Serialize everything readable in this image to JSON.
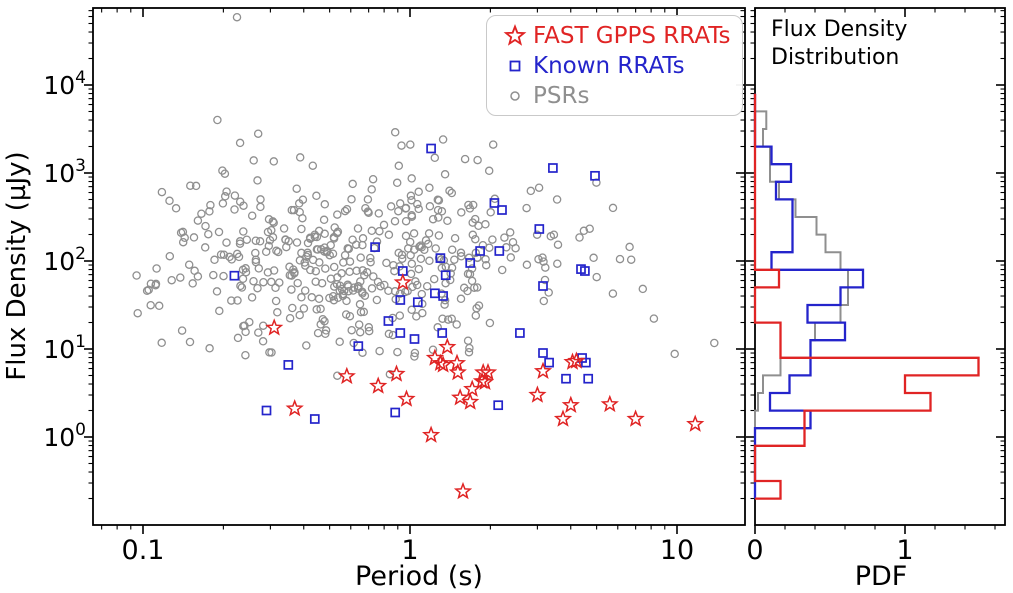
{
  "figure": {
    "background": "#ffffff",
    "text_color": "#000000",
    "spine_color": "#000000"
  },
  "chart_data": [
    {
      "id": "scatter-panel",
      "type": "scatter",
      "xlabel": "Period (s)",
      "ylabel": "Flux Density (µJy)",
      "xscale": "log",
      "yscale": "log",
      "xlim": [
        0.065,
        18
      ],
      "ylim": [
        0.1,
        75000
      ],
      "grid": false,
      "legend_position": "upper right",
      "x_ticks": [
        {
          "value": 0.1,
          "label": "0.1"
        },
        {
          "value": 1,
          "label": "1"
        },
        {
          "value": 10,
          "label": "10"
        }
      ],
      "y_ticks": [
        {
          "value": 1,
          "base": "10",
          "exponent": "0"
        },
        {
          "value": 10,
          "base": "10",
          "exponent": "1"
        },
        {
          "value": 100,
          "base": "10",
          "exponent": "2"
        },
        {
          "value": 1000,
          "base": "10",
          "exponent": "3"
        },
        {
          "value": 10000,
          "base": "10",
          "exponent": "4"
        }
      ],
      "series": [
        {
          "name": "FAST GPPS RRATs",
          "marker": "star",
          "color": "#e02424",
          "points": [
            [
              0.31,
              17.4
            ],
            [
              0.37,
              2.1
            ],
            [
              0.58,
              4.9
            ],
            [
              0.76,
              3.8
            ],
            [
              0.89,
              5.2
            ],
            [
              0.94,
              57
            ],
            [
              0.97,
              2.7
            ],
            [
              1.2,
              1.05
            ],
            [
              1.24,
              7.9
            ],
            [
              1.3,
              6.9
            ],
            [
              1.33,
              6.6
            ],
            [
              1.38,
              10.5
            ],
            [
              1.5,
              6.9
            ],
            [
              1.51,
              5.4
            ],
            [
              1.54,
              2.8
            ],
            [
              1.58,
              0.24
            ],
            [
              1.68,
              2.5
            ],
            [
              1.71,
              3.5
            ],
            [
              1.86,
              4.3
            ],
            [
              1.88,
              5.4
            ],
            [
              1.91,
              4.2
            ],
            [
              1.96,
              5.4
            ],
            [
              3.0,
              3.0
            ],
            [
              3.15,
              5.6
            ],
            [
              3.74,
              1.6
            ],
            [
              4.0,
              2.3
            ],
            [
              4.06,
              7.1
            ],
            [
              4.2,
              7.3
            ],
            [
              5.6,
              2.35
            ],
            [
              7.0,
              1.6
            ],
            [
              11.7,
              1.4
            ]
          ]
        },
        {
          "name": "Known RRATs",
          "marker": "square",
          "color": "#2424cb",
          "points": [
            [
              0.22,
              68
            ],
            [
              0.29,
              2.0
            ],
            [
              0.35,
              6.6
            ],
            [
              0.44,
              1.6
            ],
            [
              0.64,
              10.8
            ],
            [
              0.74,
              144
            ],
            [
              0.83,
              20.8
            ],
            [
              0.88,
              1.9
            ],
            [
              0.92,
              36
            ],
            [
              0.92,
              15.2
            ],
            [
              0.94,
              77
            ],
            [
              1.04,
              13
            ],
            [
              1.07,
              34
            ],
            [
              1.2,
              1900
            ],
            [
              1.24,
              43
            ],
            [
              1.3,
              108
            ],
            [
              1.32,
              15.2
            ],
            [
              1.33,
              40
            ],
            [
              1.36,
              69
            ],
            [
              1.68,
              95
            ],
            [
              1.83,
              130
            ],
            [
              2.07,
              456
            ],
            [
              2.14,
              2.3
            ],
            [
              2.16,
              130
            ],
            [
              2.21,
              380
            ],
            [
              2.58,
              15.2
            ],
            [
              3.05,
              231
            ],
            [
              3.15,
              52
            ],
            [
              3.15,
              9.0
            ],
            [
              3.32,
              7.0
            ],
            [
              3.43,
              1140
            ],
            [
              3.84,
              4.6
            ],
            [
              4.37,
              81
            ],
            [
              4.41,
              7.9
            ],
            [
              4.52,
              77
            ],
            [
              4.56,
              7.0
            ],
            [
              4.65,
              4.6
            ],
            [
              4.93,
              930
            ]
          ]
        },
        {
          "name": "PSRs",
          "marker": "circle",
          "color": "#8f8f8f",
          "points_outliers": [
            [
              0.225,
              59000
            ],
            [
              0.19,
              4000
            ],
            [
              0.27,
              2800
            ],
            [
              0.88,
              2900
            ],
            [
              1.33,
              2400
            ],
            [
              2.05,
              2100
            ],
            [
              0.105,
              47
            ],
            [
              0.115,
              31
            ],
            [
              0.15,
              12
            ],
            [
              9.8,
              8.8
            ],
            [
              13.8,
              11.7
            ]
          ],
          "cloud": {
            "count": 465,
            "seed": 7,
            "log_period_mean": -0.22,
            "log_period_sigma": 0.38,
            "log_period_range": [
              -1.03,
              0.92
            ],
            "log_flux_mean": 2.05,
            "log_flux_sigma": 0.52,
            "log_flux_range": [
              0.6,
              3.62
            ]
          }
        }
      ]
    },
    {
      "id": "pdf-panel",
      "type": "histogram",
      "title": "Flux Density Distribution",
      "title_lines": [
        "Flux Density",
        "Distribution"
      ],
      "xlabel": "PDF",
      "orientation": "horizontal",
      "xlim": [
        0,
        1.67
      ],
      "x_ticks": [
        {
          "value": 0,
          "label": "0"
        },
        {
          "value": 1,
          "label": "1"
        }
      ],
      "bin_edges_log10_flux": [
        3.9,
        3.7,
        3.5,
        3.3,
        3.1,
        2.9,
        2.7,
        2.5,
        2.3,
        2.1,
        1.9,
        1.7,
        1.5,
        1.3,
        1.1,
        0.9,
        0.7,
        0.5,
        0.3,
        0.1,
        -0.1,
        -0.3,
        -0.5,
        -0.7
      ],
      "series": [
        {
          "name": "FAST GPPS RRATs",
          "color": "#e02424",
          "pdf": [
            0,
            0,
            0,
            0,
            0,
            0,
            0,
            0,
            0,
            0,
            0.16,
            0,
            0,
            0.17,
            0.17,
            1.49,
            1.0,
            1.17,
            0.33,
            0.33,
            0,
            0,
            0.17
          ]
        },
        {
          "name": "Known RRATs",
          "color": "#2424cb",
          "pdf": [
            0,
            0,
            0,
            0.11,
            0.24,
            0.14,
            0.25,
            0.25,
            0.25,
            0.11,
            0.72,
            0.57,
            0.35,
            0.6,
            0.37,
            0.37,
            0.23,
            0.1,
            0.37,
            0,
            0,
            0,
            0
          ]
        },
        {
          "name": "PSRs",
          "color": "#8f8f8f",
          "pdf": [
            0,
            0.075,
            0.053,
            0.1,
            0.1,
            0.16,
            0.27,
            0.41,
            0.47,
            0.57,
            0.62,
            0.62,
            0.57,
            0.4,
            0.37,
            0.17,
            0.053,
            0.02,
            0,
            0,
            0,
            0,
            0
          ]
        }
      ]
    }
  ]
}
